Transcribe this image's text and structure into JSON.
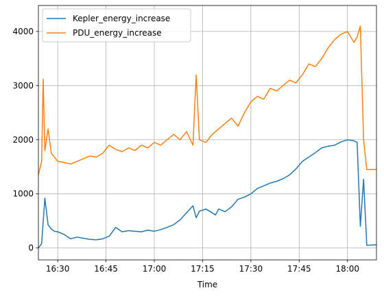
{
  "chart_data": {
    "type": "line",
    "title": "",
    "xlabel": "Time",
    "ylabel": "",
    "x_axis": {
      "kind": "time",
      "range": [
        "16:24",
        "18:09"
      ],
      "tick_values": [
        "16:30",
        "16:45",
        "17:00",
        "17:15",
        "17:30",
        "17:45",
        "18:00"
      ],
      "tick_labels": [
        "16:30",
        "16:45",
        "17:00",
        "17:15",
        "17:30",
        "17:45",
        "18:00"
      ]
    },
    "y_axis": {
      "range": [
        -220,
        4480
      ],
      "tick_values": [
        0,
        1000,
        2000,
        3000,
        4000
      ],
      "tick_labels": [
        "0",
        "1000",
        "2000",
        "3000",
        "4000"
      ]
    },
    "grid": true,
    "legend": {
      "placement": "top-left"
    },
    "series": [
      {
        "name": "Kepler_energy_increase",
        "color": "#1f77b4",
        "x": [
          "16:24",
          "16:25",
          "16:26",
          "16:27",
          "16:28",
          "16:29",
          "16:30",
          "16:32",
          "16:34",
          "16:36",
          "16:38",
          "16:40",
          "16:42",
          "16:44",
          "16:46",
          "16:48",
          "16:50",
          "16:52",
          "16:54",
          "16:56",
          "16:58",
          "17:00",
          "17:02",
          "17:04",
          "17:06",
          "17:08",
          "17:10",
          "17:12",
          "17:13",
          "17:14",
          "17:16",
          "17:18",
          "17:19",
          "17:20",
          "17:22",
          "17:24",
          "17:26",
          "17:28",
          "17:30",
          "17:32",
          "17:34",
          "17:36",
          "17:38",
          "17:40",
          "17:42",
          "17:44",
          "17:46",
          "17:48",
          "17:50",
          "17:52",
          "17:54",
          "17:56",
          "17:58",
          "18:00",
          "18:02",
          "18:03",
          "18:04",
          "18:05",
          "18:06",
          "18:09"
        ],
        "values": [
          0,
          80,
          920,
          430,
          350,
          310,
          300,
          250,
          170,
          200,
          180,
          160,
          150,
          170,
          220,
          380,
          300,
          320,
          310,
          300,
          330,
          310,
          340,
          380,
          430,
          520,
          650,
          780,
          560,
          680,
          720,
          650,
          610,
          720,
          670,
          760,
          900,
          940,
          1000,
          1100,
          1150,
          1200,
          1230,
          1280,
          1350,
          1460,
          1600,
          1680,
          1760,
          1850,
          1880,
          1900,
          1960,
          2000,
          1980,
          1950,
          400,
          1270,
          50,
          60
        ]
      },
      {
        "name": "PDU_energy_increase",
        "color": "#ff7f0e",
        "x": [
          "16:24",
          "16:25",
          "16:25.5",
          "16:26",
          "16:27",
          "16:28",
          "16:30",
          "16:32",
          "16:34",
          "16:36",
          "16:38",
          "16:40",
          "16:42",
          "16:44",
          "16:46",
          "16:48",
          "16:50",
          "16:52",
          "16:54",
          "16:56",
          "16:58",
          "17:00",
          "17:02",
          "17:04",
          "17:06",
          "17:08",
          "17:10",
          "17:12",
          "17:13",
          "17:14",
          "17:16",
          "17:18",
          "17:20",
          "17:22",
          "17:24",
          "17:26",
          "17:28",
          "17:30",
          "17:32",
          "17:34",
          "17:36",
          "17:38",
          "17:40",
          "17:42",
          "17:44",
          "17:46",
          "17:48",
          "17:50",
          "17:52",
          "17:54",
          "17:56",
          "17:58",
          "18:00",
          "18:02",
          "18:03",
          "18:04",
          "18:05",
          "18:06",
          "18:09"
        ],
        "values": [
          1350,
          1600,
          3120,
          1800,
          2200,
          1750,
          1600,
          1580,
          1550,
          1600,
          1650,
          1700,
          1680,
          1750,
          1900,
          1820,
          1780,
          1850,
          1800,
          1900,
          1850,
          1950,
          1900,
          2000,
          2100,
          2000,
          2150,
          1900,
          3200,
          2000,
          1950,
          2100,
          2200,
          2300,
          2400,
          2250,
          2500,
          2700,
          2800,
          2750,
          2950,
          2900,
          3000,
          3100,
          3050,
          3200,
          3400,
          3350,
          3500,
          3700,
          3850,
          3950,
          4000,
          3800,
          3900,
          4100,
          2000,
          1450,
          1450
        ]
      }
    ]
  }
}
